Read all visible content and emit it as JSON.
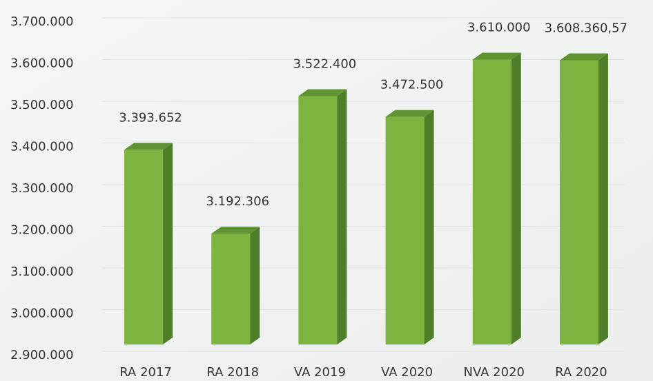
{
  "chart_data": {
    "type": "bar3d",
    "categories": [
      "RA 2017",
      "RA 2018",
      "VA 2019",
      "VA 2020",
      "NVA 2020",
      "RA 2020"
    ],
    "values": [
      3393652,
      3192306,
      3522400,
      3472500,
      3610000,
      3608360.57
    ],
    "value_labels": [
      "3.393.652",
      "3.192.306",
      "3.522.400",
      "3.472.500",
      "3.610.000",
      "3.608.360,57"
    ],
    "color": "#7db43f",
    "ylim": [
      2900000,
      3700000
    ],
    "yticks": [
      {
        "value": 2900000,
        "label": "2.900.000"
      },
      {
        "value": 3000000,
        "label": "3.000.000"
      },
      {
        "value": 3100000,
        "label": "3.100.000"
      },
      {
        "value": 3200000,
        "label": "3.200.000"
      },
      {
        "value": 3300000,
        "label": "3.300.000"
      },
      {
        "value": 3400000,
        "label": "3.400.000"
      },
      {
        "value": 3500000,
        "label": "3.500.000"
      },
      {
        "value": 3600000,
        "label": "3.600.000"
      },
      {
        "value": 3700000,
        "label": "3.700.000"
      }
    ],
    "grid": true
  }
}
